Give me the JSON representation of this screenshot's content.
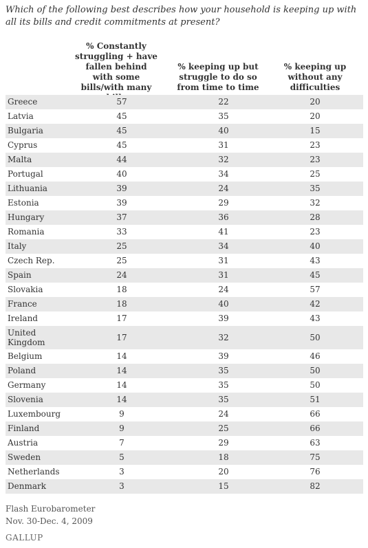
{
  "title": "Which of the following best describes how your household is keeping up with all its bills and credit commitments at present?",
  "chart_data": {
    "type": "table",
    "title": "Which of the following best describes how your household is keeping up with all its bills and credit commitments at present?",
    "columns": [
      "% Constantly struggling + have fallen behind with some bills/with many bills",
      "% keeping up but struggle to do so from time to time",
      "% keeping up without any difficulties"
    ],
    "rows": [
      {
        "country": "Greece",
        "values": [
          57,
          22,
          20
        ]
      },
      {
        "country": "Latvia",
        "values": [
          45,
          35,
          20
        ]
      },
      {
        "country": "Bulgaria",
        "values": [
          45,
          40,
          15
        ]
      },
      {
        "country": "Cyprus",
        "values": [
          45,
          31,
          23
        ]
      },
      {
        "country": "Malta",
        "values": [
          44,
          32,
          23
        ]
      },
      {
        "country": "Portugal",
        "values": [
          40,
          34,
          25
        ]
      },
      {
        "country": "Lithuania",
        "values": [
          39,
          24,
          35
        ]
      },
      {
        "country": "Estonia",
        "values": [
          39,
          29,
          32
        ]
      },
      {
        "country": "Hungary",
        "values": [
          37,
          36,
          28
        ]
      },
      {
        "country": "Romania",
        "values": [
          33,
          41,
          23
        ]
      },
      {
        "country": "Italy",
        "values": [
          25,
          34,
          40
        ]
      },
      {
        "country": "Czech Rep.",
        "values": [
          25,
          31,
          43
        ]
      },
      {
        "country": "Spain",
        "values": [
          24,
          31,
          45
        ]
      },
      {
        "country": "Slovakia",
        "values": [
          18,
          24,
          57
        ]
      },
      {
        "country": "France",
        "values": [
          18,
          40,
          42
        ]
      },
      {
        "country": "Ireland",
        "values": [
          17,
          39,
          43
        ]
      },
      {
        "country": "United Kingdom",
        "values": [
          17,
          32,
          50
        ]
      },
      {
        "country": "Belgium",
        "values": [
          14,
          39,
          46
        ]
      },
      {
        "country": "Poland",
        "values": [
          14,
          35,
          50
        ]
      },
      {
        "country": "Germany",
        "values": [
          14,
          35,
          50
        ]
      },
      {
        "country": "Slovenia",
        "values": [
          14,
          35,
          51
        ]
      },
      {
        "country": "Luxembourg",
        "values": [
          9,
          24,
          66
        ]
      },
      {
        "country": "Finland",
        "values": [
          9,
          25,
          66
        ]
      },
      {
        "country": "Austria",
        "values": [
          7,
          29,
          63
        ]
      },
      {
        "country": "Sweden",
        "values": [
          5,
          18,
          75
        ]
      },
      {
        "country": "Netherlands",
        "values": [
          3,
          20,
          76
        ]
      },
      {
        "country": "Denmark",
        "values": [
          3,
          15,
          82
        ]
      }
    ]
  },
  "source": {
    "line1": "Flash Eurobarometer",
    "line2": "Nov. 30-Dec. 4, 2009"
  },
  "logo_text": "GALLUP",
  "colors": {
    "shaded_row": "#e8e8e8",
    "text": "#333333"
  }
}
